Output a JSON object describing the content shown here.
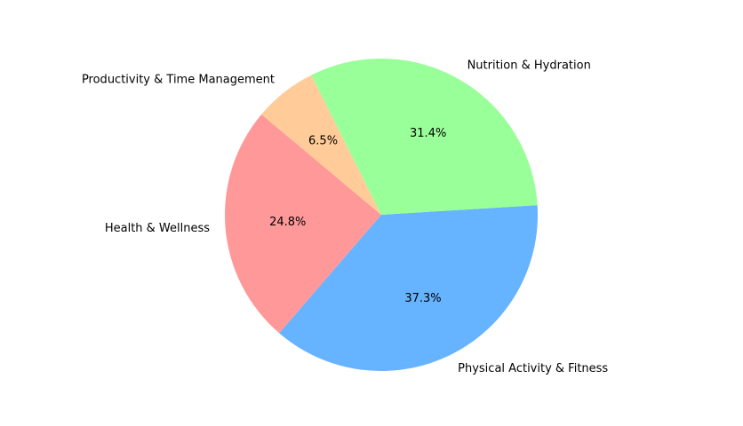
{
  "chart_data": {
    "type": "pie",
    "title": "",
    "slices": [
      {
        "label": "Health & Wellness",
        "value": 24.8,
        "pct_label": "24.8%",
        "color": "#ff9999"
      },
      {
        "label": "Physical Activity & Fitness",
        "value": 37.3,
        "pct_label": "37.3%",
        "color": "#66b3ff"
      },
      {
        "label": "Nutrition & Hydration",
        "value": 31.4,
        "pct_label": "31.4%",
        "color": "#99ff99"
      },
      {
        "label": "Productivity & Time Management",
        "value": 6.5,
        "pct_label": "6.5%",
        "color": "#ffcc99"
      }
    ],
    "start_angle_deg": 140,
    "direction": "counterclockwise",
    "legend": "none"
  }
}
